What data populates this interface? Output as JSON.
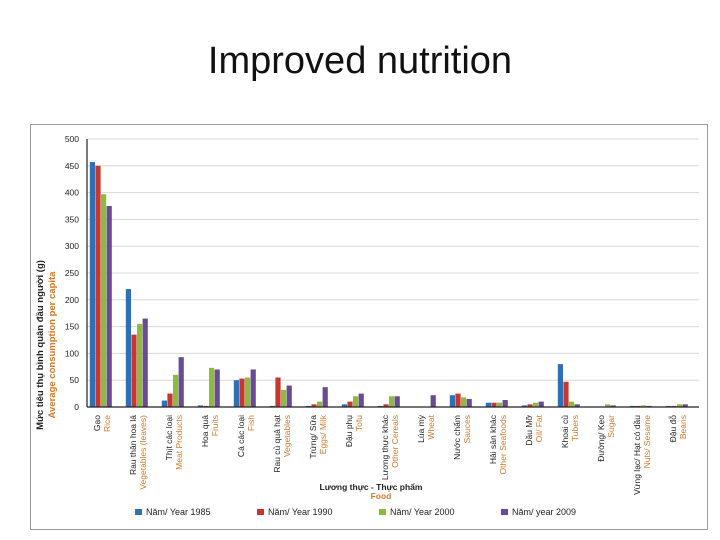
{
  "slide": {
    "title": "Improved nutrition"
  },
  "chart_data": {
    "type": "bar",
    "ylabel_vi": "Mức tiêu thụ bình quân đầu người (g)",
    "ylabel_en": "Average consumption per capita",
    "xlabel_vi": "Lương thực - Thực phẩm",
    "xlabel_en": "Food",
    "ylim": [
      0,
      500
    ],
    "yticks": [
      0,
      50,
      100,
      150,
      200,
      250,
      300,
      350,
      400,
      450,
      500
    ],
    "grid": true,
    "legend_position": "bottom",
    "categories": [
      {
        "vi": "Gạo",
        "en": "Rice"
      },
      {
        "vi": "Rau thân hoa lá",
        "en": "Vegetables (leaves)"
      },
      {
        "vi": "Thịt các loại",
        "en": "Meat Products"
      },
      {
        "vi": "Hoa quả",
        "en": "Fruits"
      },
      {
        "vi": "Cá các loại",
        "en": "Fish"
      },
      {
        "vi": "Rau củ quả hạt",
        "en": "Vegetables"
      },
      {
        "vi": "Trứng/ Sữa",
        "en": "Eggs/ Milk"
      },
      {
        "vi": "Đậu phụ",
        "en": "Tofu"
      },
      {
        "vi": "Lương thực khác",
        "en": "Other Cereals"
      },
      {
        "vi": "Lúa mỳ",
        "en": "Wheat"
      },
      {
        "vi": "Nước chấm",
        "en": "Sauces"
      },
      {
        "vi": "Hải sản khác",
        "en": "Other Seafoods"
      },
      {
        "vi": "Dầu Mỡ",
        "en": "Oil/ Fat"
      },
      {
        "vi": "Khoai củ",
        "en": "Tubers"
      },
      {
        "vi": "Đường/ Kẹo",
        "en": "Sugar"
      },
      {
        "vi": "Vừng lạc/ Hạt có dầu",
        "en": "Nuts/ Sesame"
      },
      {
        "vi": "Đậu đỗ",
        "en": "Beans"
      }
    ],
    "series": [
      {
        "name": "Năm/ Year 1985",
        "color": "#2e6fb5",
        "values": [
          457,
          220,
          12,
          3,
          50,
          2,
          2,
          5,
          2,
          0,
          22,
          8,
          3,
          80,
          0,
          2,
          2
        ]
      },
      {
        "name": "Năm/ Year 1990",
        "color": "#c8372d",
        "values": [
          450,
          135,
          25,
          2,
          53,
          55,
          5,
          10,
          5,
          0,
          25,
          8,
          5,
          47,
          0,
          2,
          2
        ]
      },
      {
        "name": "Năm/ Year 2000",
        "color": "#8dbb3c",
        "values": [
          397,
          155,
          60,
          73,
          55,
          32,
          10,
          20,
          20,
          0,
          18,
          8,
          8,
          10,
          5,
          3,
          5
        ]
      },
      {
        "name": "Năm/ year 2009",
        "color": "#6a4a92",
        "values": [
          375,
          165,
          93,
          70,
          70,
          40,
          37,
          25,
          20,
          22,
          15,
          13,
          10,
          5,
          3,
          2,
          5
        ]
      }
    ]
  }
}
